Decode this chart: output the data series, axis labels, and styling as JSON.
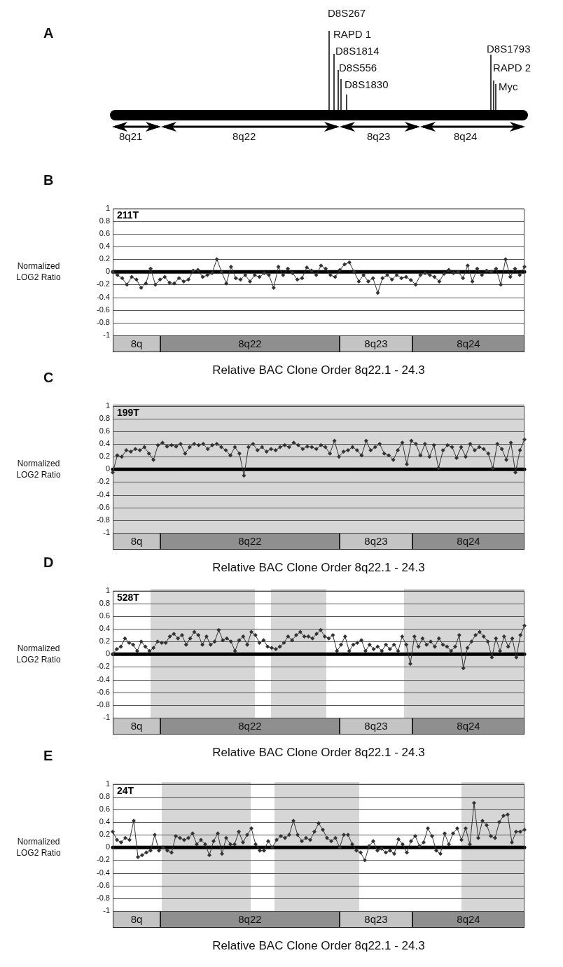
{
  "chart_data": [
    {
      "type": "other",
      "annotations": [
        "A",
        "D8S267",
        "RAPD 1",
        "D8S1814",
        "D8S556",
        "D8S1830",
        "D8S1793",
        "RAPD 2",
        "Myc",
        "8q21",
        "8q22",
        "8q23",
        "8q24"
      ]
    },
    {
      "type": "line",
      "title": "211T",
      "annotations": [
        "B",
        "8q",
        "8q22",
        "8q23",
        "8q24"
      ],
      "xlabel": "Relative BAC Clone Order 8q22.1 - 24.3",
      "ylabel": "Normalized LOG2 Ratio",
      "categories": [
        null,
        null,
        null,
        null,
        null,
        null,
        null,
        null,
        null,
        null,
        null,
        null,
        null,
        null,
        null,
        null,
        null,
        null,
        null,
        null,
        null,
        null,
        null,
        null,
        null,
        null,
        null,
        null,
        null,
        null,
        null,
        null,
        null,
        null,
        null,
        null,
        null,
        null,
        null,
        null,
        null,
        null,
        null,
        null,
        null,
        null,
        null,
        null,
        null,
        null,
        null,
        null,
        null,
        null,
        null,
        null,
        null,
        null,
        null,
        null,
        null,
        null,
        null,
        null,
        null,
        null,
        null,
        null,
        null,
        null,
        null,
        null,
        null,
        null,
        null,
        null,
        null,
        null,
        null,
        null,
        null,
        null,
        null,
        null,
        null,
        null,
        null,
        null
      ],
      "series": [
        {
          "color": "#333333",
          "values": [
            0,
            -0.05,
            -0.1,
            -0.2,
            -0.08,
            -0.12,
            -0.25,
            -0.18,
            0.05,
            -0.2,
            -0.12,
            -0.08,
            -0.17,
            -0.18,
            -0.1,
            -0.15,
            -0.12,
            0.02,
            0.03,
            -0.08,
            -0.05,
            -0.02,
            0.2,
            0,
            -0.18,
            0.08,
            -0.1,
            -0.12,
            -0.05,
            -0.15,
            -0.05,
            -0.08,
            -0.02,
            -0.05,
            -0.25,
            0.08,
            -0.05,
            0.05,
            -0.02,
            -0.12,
            -0.1,
            0.07,
            0.02,
            -0.05,
            0.1,
            0.05,
            -0.05,
            -0.08,
            0.03,
            0.12,
            0.15,
            0,
            -0.15,
            -0.05,
            -0.15,
            -0.1,
            -0.33,
            -0.1,
            -0.05,
            -0.12,
            -0.05,
            -0.1,
            -0.08,
            -0.13,
            -0.2,
            -0.05,
            -0.02,
            -0.05,
            -0.08,
            -0.15,
            -0.03,
            0.03,
            -0.02,
            0,
            -0.1,
            0.1,
            -0.15,
            0.05,
            -0.05,
            0.02,
            0,
            0.05,
            -0.2,
            0.2,
            -0.08,
            0.05,
            -0.05,
            0.08
          ]
        }
      ],
      "ylim": [
        -1,
        1
      ],
      "yticks": [
        -1,
        -0.8,
        -0.6,
        -0.4,
        -0.2,
        0,
        0.2,
        0.4,
        0.6,
        0.8,
        1
      ],
      "tick_labels": "y",
      "grid": "y",
      "marker": "diamond",
      "line_style": "solid",
      "ref_lines": [
        {
          "axis": "y",
          "value": 0,
          "color": "#000000"
        }
      ]
    },
    {
      "type": "line",
      "title": "199T",
      "annotations": [
        "C",
        "8q",
        "8q22",
        "8q23",
        "8q24"
      ],
      "xlabel": "Relative BAC Clone Order 8q22.1 - 24.3",
      "ylabel": "Normalized LOG2 Ratio",
      "categories": [
        null,
        null,
        null,
        null,
        null,
        null,
        null,
        null,
        null,
        null,
        null,
        null,
        null,
        null,
        null,
        null,
        null,
        null,
        null,
        null,
        null,
        null,
        null,
        null,
        null,
        null,
        null,
        null,
        null,
        null,
        null,
        null,
        null,
        null,
        null,
        null,
        null,
        null,
        null,
        null,
        null,
        null,
        null,
        null,
        null,
        null,
        null,
        null,
        null,
        null,
        null,
        null,
        null,
        null,
        null,
        null,
        null,
        null,
        null,
        null,
        null,
        null,
        null,
        null,
        null,
        null,
        null,
        null,
        null,
        null,
        null,
        null,
        null,
        null,
        null,
        null,
        null,
        null,
        null,
        null,
        null,
        null,
        null,
        null,
        null,
        null,
        null,
        null,
        null,
        null,
        null,
        null
      ],
      "series": [
        {
          "color": "#333333",
          "values": [
            -0.05,
            0.22,
            0.2,
            0.3,
            0.28,
            0.32,
            0.3,
            0.35,
            0.25,
            0.15,
            0.38,
            0.42,
            0.36,
            0.38,
            0.36,
            0.4,
            0.25,
            0.35,
            0.4,
            0.38,
            0.4,
            0.32,
            0.38,
            0.4,
            0.35,
            0.3,
            0.22,
            0.35,
            0.25,
            -0.1,
            0.35,
            0.4,
            0.3,
            0.35,
            0.28,
            0.32,
            0.3,
            0.35,
            0.38,
            0.35,
            0.42,
            0.38,
            0.32,
            0.36,
            0.35,
            0.32,
            0.38,
            0.35,
            0.25,
            0.45,
            0.2,
            0.28,
            0.3,
            0.35,
            0.3,
            0.22,
            0.45,
            0.3,
            0.35,
            0.4,
            0.25,
            0.22,
            0.15,
            0.3,
            0.42,
            0.08,
            0.45,
            0.4,
            0.22,
            0.4,
            0.2,
            0.38,
            0.02,
            0.3,
            0.38,
            0.35,
            0.18,
            0.35,
            0.2,
            0.4,
            0.3,
            0.35,
            0.32,
            0.25,
            0.02,
            0.4,
            0.32,
            0.15,
            0.42,
            -0.05,
            0.3,
            0.47
          ]
        }
      ],
      "ylim": [
        -1,
        1
      ],
      "yticks": [
        -1,
        -0.8,
        -0.6,
        -0.4,
        -0.2,
        0,
        0.2,
        0.4,
        0.6,
        0.8,
        1
      ],
      "tick_labels": "y",
      "grid": "y",
      "marker": "diamond",
      "line_style": "solid",
      "ref_lines": [
        {
          "axis": "y",
          "value": 0,
          "color": "#000000"
        }
      ]
    },
    {
      "type": "line",
      "title": "528T",
      "annotations": [
        "D",
        "8q",
        "8q22",
        "8q23",
        "8q24"
      ],
      "xlabel": "Relative BAC Clone Order 8q22.1 - 24.3",
      "ylabel": "Normalized LOG2 Ratio",
      "categories": [
        null,
        null,
        null,
        null,
        null,
        null,
        null,
        null,
        null,
        null,
        null,
        null,
        null,
        null,
        null,
        null,
        null,
        null,
        null,
        null,
        null,
        null,
        null,
        null,
        null,
        null,
        null,
        null,
        null,
        null,
        null,
        null,
        null,
        null,
        null,
        null,
        null,
        null,
        null,
        null,
        null,
        null,
        null,
        null,
        null,
        null,
        null,
        null,
        null,
        null,
        null,
        null,
        null,
        null,
        null,
        null,
        null,
        null,
        null,
        null,
        null,
        null,
        null,
        null,
        null,
        null,
        null,
        null,
        null,
        null,
        null,
        null,
        null,
        null,
        null,
        null,
        null,
        null,
        null,
        null,
        null,
        null,
        null,
        null,
        null,
        null,
        null,
        null,
        null,
        null,
        null,
        null,
        null,
        null,
        null,
        null,
        null,
        null,
        null,
        null,
        null,
        null
      ],
      "series": [
        {
          "color": "#333333",
          "values": [
            0,
            0.08,
            0.12,
            0.25,
            0.18,
            0.15,
            0.05,
            0.2,
            0.12,
            0.05,
            0.1,
            0.2,
            0.18,
            0.18,
            0.28,
            0.32,
            0.25,
            0.3,
            0.15,
            0.25,
            0.35,
            0.3,
            0.15,
            0.28,
            0.15,
            0.2,
            0.38,
            0.22,
            0.25,
            0.2,
            0.05,
            0.22,
            0.28,
            0.15,
            0.35,
            0.3,
            0.18,
            0.22,
            0.12,
            0.1,
            0.08,
            0.12,
            0.18,
            0.28,
            0.22,
            0.3,
            0.35,
            0.28,
            0.28,
            0.25,
            0.32,
            0.38,
            0.28,
            0.25,
            0.3,
            0.05,
            0.15,
            0.28,
            0.05,
            0.15,
            0.18,
            0.22,
            0.05,
            0.15,
            0.08,
            0.12,
            0.05,
            0.15,
            0.08,
            0.15,
            0.05,
            0.28,
            0.15,
            -0.15,
            0.28,
            0.12,
            0.25,
            0.15,
            0.2,
            0.12,
            0.25,
            0.15,
            0.12,
            0.05,
            0.12,
            0.3,
            -0.22,
            0.1,
            0.2,
            0.3,
            0.35,
            0.28,
            0.2,
            -0.05,
            0.25,
            0.05,
            0.28,
            0.12,
            0.25,
            -0.05,
            0.3,
            0.45
          ]
        }
      ],
      "ylim": [
        -1,
        1
      ],
      "yticks": [
        -1,
        -0.8,
        -0.6,
        -0.4,
        -0.2,
        0,
        0.2,
        0.4,
        0.6,
        0.8,
        1
      ],
      "tick_labels": "y",
      "grid": "y",
      "marker": "diamond",
      "line_style": "solid",
      "ref_lines": [
        {
          "axis": "y",
          "value": 0,
          "color": "#000000"
        }
      ]
    },
    {
      "type": "line",
      "title": "24T",
      "annotations": [
        "E",
        "8q",
        "8q22",
        "8q23",
        "8q24"
      ],
      "xlabel": "Relative BAC Clone Order 8q22.1 - 24.3",
      "ylabel": "Normalized LOG2 Ratio",
      "categories": [
        null,
        null,
        null,
        null,
        null,
        null,
        null,
        null,
        null,
        null,
        null,
        null,
        null,
        null,
        null,
        null,
        null,
        null,
        null,
        null,
        null,
        null,
        null,
        null,
        null,
        null,
        null,
        null,
        null,
        null,
        null,
        null,
        null,
        null,
        null,
        null,
        null,
        null,
        null,
        null,
        null,
        null,
        null,
        null,
        null,
        null,
        null,
        null,
        null,
        null,
        null,
        null,
        null,
        null,
        null,
        null,
        null,
        null,
        null,
        null,
        null,
        null,
        null,
        null,
        null,
        null,
        null,
        null,
        null,
        null,
        null,
        null,
        null,
        null,
        null,
        null,
        null,
        null,
        null,
        null,
        null,
        null,
        null,
        null,
        null,
        null,
        null,
        null,
        null,
        null,
        null,
        null,
        null,
        null,
        null,
        null,
        null,
        null,
        null
      ],
      "series": [
        {
          "color": "#333333",
          "values": [
            0.25,
            0.12,
            0.08,
            0.15,
            0.12,
            0.42,
            -0.15,
            -0.12,
            -0.08,
            -0.05,
            0.2,
            -0.05,
            0,
            -0.05,
            -0.08,
            0.18,
            0.15,
            0.12,
            0.15,
            0.22,
            0.05,
            0.12,
            0.05,
            -0.12,
            0.1,
            0.22,
            -0.1,
            0.15,
            0.05,
            0.05,
            0.25,
            0.08,
            0.2,
            0.3,
            0.05,
            -0.05,
            -0.05,
            0.1,
            0,
            0.12,
            0.18,
            0.15,
            0.2,
            0.42,
            0.2,
            0.1,
            0.15,
            0.12,
            0.25,
            0.38,
            0.28,
            0.15,
            0.1,
            0.15,
            0,
            0.2,
            0.2,
            0.05,
            -0.05,
            -0.08,
            -0.2,
            0.02,
            0.1,
            -0.05,
            -0.02,
            -0.08,
            -0.05,
            -0.1,
            0.13,
            0.05,
            -0.08,
            0.1,
            0.18,
            0.02,
            0.08,
            0.3,
            0.18,
            -0.05,
            -0.1,
            0.22,
            0.05,
            0.22,
            0.3,
            0.12,
            0.3,
            0.05,
            0.7,
            0.15,
            0.42,
            0.35,
            0.18,
            0.15,
            0.4,
            0.5,
            0.52,
            0.08,
            0.25,
            0.25,
            0.28
          ]
        }
      ],
      "ylim": [
        -1,
        1
      ],
      "yticks": [
        -1,
        -0.8,
        -0.6,
        -0.4,
        -0.2,
        0,
        0.2,
        0.4,
        0.6,
        0.8,
        1
      ],
      "tick_labels": "y",
      "grid": "y",
      "marker": "diamond",
      "line_style": "solid",
      "ref_lines": [
        {
          "axis": "y",
          "value": 0,
          "color": "#000000"
        }
      ]
    }
  ]
}
